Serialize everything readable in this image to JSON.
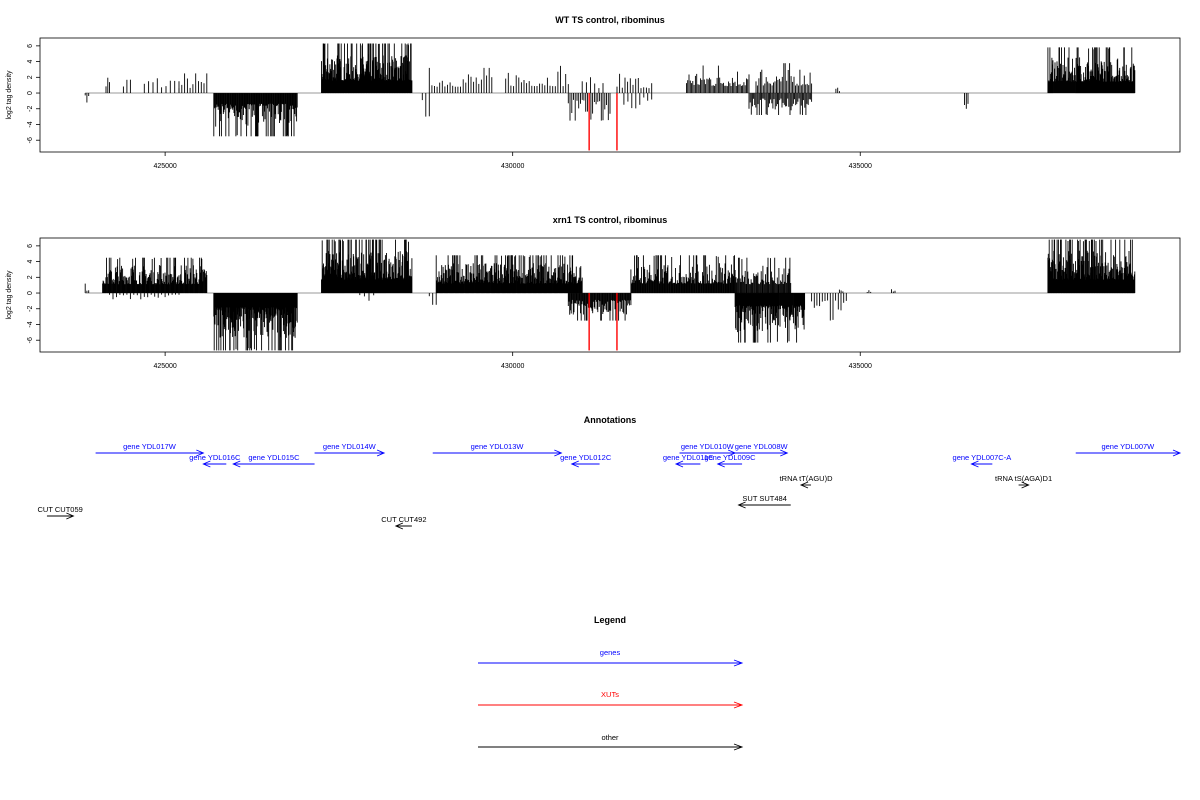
{
  "colors": {
    "genes": "#0000ff",
    "xuts": "#ff0000",
    "other": "#000000",
    "baseline": "#999999"
  },
  "chart_data": [
    {
      "type": "bar",
      "title": "WT TS control, ribominus",
      "ylabel": "log2 tag density",
      "ylim": [
        -7.5,
        7
      ],
      "yticks": [
        6,
        4,
        2,
        0,
        -2,
        -4,
        -6
      ],
      "xlim": [
        423200,
        439600
      ],
      "xticks": [
        425000,
        430000,
        435000
      ],
      "segments": [
        {
          "from": 423850,
          "to": 423900,
          "sign": -1,
          "max": 1.2,
          "density": 1
        },
        {
          "from": 424150,
          "to": 424200,
          "sign": 1,
          "max": 3,
          "density": 1
        },
        {
          "from": 424400,
          "to": 424500,
          "sign": 1,
          "max": 2.5,
          "density": 0.5
        },
        {
          "from": 424700,
          "to": 425200,
          "sign": 1,
          "max": 2.5,
          "density": 0.25
        },
        {
          "from": 425200,
          "to": 425600,
          "sign": 1,
          "max": 2.5,
          "density": 0.4
        },
        {
          "from": 425700,
          "to": 426900,
          "sign": -1,
          "max": 5.5,
          "density": 1.6
        },
        {
          "from": 427250,
          "to": 428550,
          "sign": 1,
          "max": 6.3,
          "density": 2.4
        },
        {
          "from": 428700,
          "to": 428800,
          "sign": -1,
          "max": 3,
          "density": 0.5
        },
        {
          "from": 428800,
          "to": 429700,
          "sign": 1,
          "max": 3.2,
          "density": 0.4
        },
        {
          "from": 429900,
          "to": 430800,
          "sign": 1,
          "max": 3.5,
          "density": 0.4
        },
        {
          "from": 430800,
          "to": 431400,
          "sign": -1,
          "max": 3.5,
          "density": 0.6
        },
        {
          "from": 431000,
          "to": 431300,
          "sign": 1,
          "max": 2,
          "density": 0.3
        },
        {
          "from": 431500,
          "to": 432000,
          "sign": 1,
          "max": 2.5,
          "density": 0.4
        },
        {
          "from": 431600,
          "to": 432000,
          "sign": -1,
          "max": 2,
          "density": 0.3
        },
        {
          "from": 432500,
          "to": 433400,
          "sign": 1,
          "max": 3.5,
          "density": 0.8
        },
        {
          "from": 433400,
          "to": 434300,
          "sign": -1,
          "max": 2.8,
          "density": 0.9
        },
        {
          "from": 433500,
          "to": 434300,
          "sign": 1,
          "max": 3.8,
          "density": 0.7
        },
        {
          "from": 434650,
          "to": 434700,
          "sign": 1,
          "max": 1,
          "density": 1
        },
        {
          "from": 436500,
          "to": 436550,
          "sign": -1,
          "max": 2,
          "density": 1
        },
        {
          "from": 437700,
          "to": 438950,
          "sign": 1,
          "max": 5.8,
          "density": 2
        }
      ],
      "xut_bars": [
        {
          "x": 431100,
          "value": -7.3
        },
        {
          "x": 431500,
          "value": -7.3
        }
      ]
    },
    {
      "type": "bar",
      "title": "xrn1 TS control, ribominus",
      "ylabel": "log2 tag density",
      "ylim": [
        -7.5,
        7
      ],
      "yticks": [
        6,
        4,
        2,
        0,
        -2,
        -4,
        -6
      ],
      "xlim": [
        423200,
        439600
      ],
      "xticks": [
        425000,
        430000,
        435000
      ],
      "segments": [
        {
          "from": 423850,
          "to": 423900,
          "sign": 1,
          "max": 1.2,
          "density": 1
        },
        {
          "from": 424100,
          "to": 425600,
          "sign": 1,
          "max": 4.5,
          "density": 1.8
        },
        {
          "from": 424200,
          "to": 425200,
          "sign": -1,
          "max": 0.8,
          "density": 0.3
        },
        {
          "from": 425700,
          "to": 426900,
          "sign": -1,
          "max": 7.3,
          "density": 2.4
        },
        {
          "from": 427250,
          "to": 428550,
          "sign": 1,
          "max": 6.8,
          "density": 3
        },
        {
          "from": 427800,
          "to": 428000,
          "sign": -1,
          "max": 1,
          "density": 0.3
        },
        {
          "from": 428800,
          "to": 428900,
          "sign": -1,
          "max": 1.5,
          "density": 0.5
        },
        {
          "from": 428900,
          "to": 431000,
          "sign": 1,
          "max": 4.8,
          "density": 2.2
        },
        {
          "from": 430800,
          "to": 431700,
          "sign": -1,
          "max": 3.5,
          "density": 1.4
        },
        {
          "from": 431700,
          "to": 433200,
          "sign": 1,
          "max": 4.8,
          "density": 1.6
        },
        {
          "from": 433200,
          "to": 434200,
          "sign": -1,
          "max": 6.3,
          "density": 2
        },
        {
          "from": 433200,
          "to": 434000,
          "sign": 1,
          "max": 4.5,
          "density": 1.2
        },
        {
          "from": 434300,
          "to": 434800,
          "sign": -1,
          "max": 3.5,
          "density": 0.4
        },
        {
          "from": 434700,
          "to": 434750,
          "sign": 1,
          "max": 0.6,
          "density": 1
        },
        {
          "from": 435100,
          "to": 435150,
          "sign": 1,
          "max": 0.5,
          "density": 1
        },
        {
          "from": 435450,
          "to": 435500,
          "sign": 1,
          "max": 0.5,
          "density": 1
        },
        {
          "from": 437700,
          "to": 438950,
          "sign": 1,
          "max": 6.8,
          "density": 2.4
        }
      ],
      "xut_bars": [
        {
          "x": 431100,
          "value": -7.3
        },
        {
          "x": 431500,
          "value": -7.3
        }
      ]
    }
  ],
  "annotations": {
    "title": "Annotations",
    "features": [
      {
        "label": "gene YDL017W",
        "category": "genes",
        "strand": "+",
        "start": 424000,
        "end": 425550,
        "row": 0
      },
      {
        "label": "gene YDL016C",
        "category": "genes",
        "strand": "-",
        "start": 425550,
        "end": 425880,
        "row": 1
      },
      {
        "label": "gene YDL015C",
        "category": "genes",
        "strand": "-",
        "start": 425980,
        "end": 427150,
        "row": 1
      },
      {
        "label": "gene YDL014W",
        "category": "genes",
        "strand": "+",
        "start": 427150,
        "end": 428150,
        "row": 0
      },
      {
        "label": "gene YDL013W",
        "category": "genes",
        "strand": "+",
        "start": 428850,
        "end": 430700,
        "row": 0
      },
      {
        "label": "gene YDL012C",
        "category": "genes",
        "strand": "-",
        "start": 430850,
        "end": 431250,
        "row": 1
      },
      {
        "label": "gene YDL011C",
        "category": "genes",
        "strand": "-",
        "start": 432350,
        "end": 432700,
        "row": 1
      },
      {
        "label": "gene YDL010W",
        "category": "genes",
        "strand": "+",
        "start": 432400,
        "end": 433200,
        "row": 0
      },
      {
        "label": "gene YDL009C",
        "category": "genes",
        "strand": "-",
        "start": 432950,
        "end": 433300,
        "row": 1
      },
      {
        "label": "gene YDL008W",
        "category": "genes",
        "strand": "+",
        "start": 433200,
        "end": 433950,
        "row": 0
      },
      {
        "label": "gene YDL007C-A",
        "category": "genes",
        "strand": "-",
        "start": 436600,
        "end": 436900,
        "row": 1
      },
      {
        "label": "gene YDL007W",
        "category": "genes",
        "strand": "+",
        "start": 438100,
        "end": 439600,
        "row": 0
      },
      {
        "label": "tRNA tT(AGU)D",
        "category": "other",
        "strand": "-",
        "start": 434170,
        "end": 434270,
        "row": 2
      },
      {
        "label": "tRNA tS(AGA)D1",
        "category": "other",
        "strand": "+",
        "start": 437300,
        "end": 437400,
        "row": 2
      },
      {
        "label": "SUT SUT484",
        "category": "other",
        "strand": "-",
        "start": 433250,
        "end": 434000,
        "row": 3
      },
      {
        "label": "CUT CUT059",
        "category": "other",
        "strand": "+",
        "start": 423300,
        "end": 423680,
        "row": 4
      },
      {
        "label": "CUT CUT492",
        "category": "other",
        "strand": "-",
        "start": 428320,
        "end": 428550,
        "row": 5
      }
    ]
  },
  "legend": {
    "title": "Legend",
    "items": [
      {
        "label": "genes",
        "category": "genes"
      },
      {
        "label": "XUTs",
        "category": "xuts"
      },
      {
        "label": "other",
        "category": "other"
      }
    ]
  }
}
